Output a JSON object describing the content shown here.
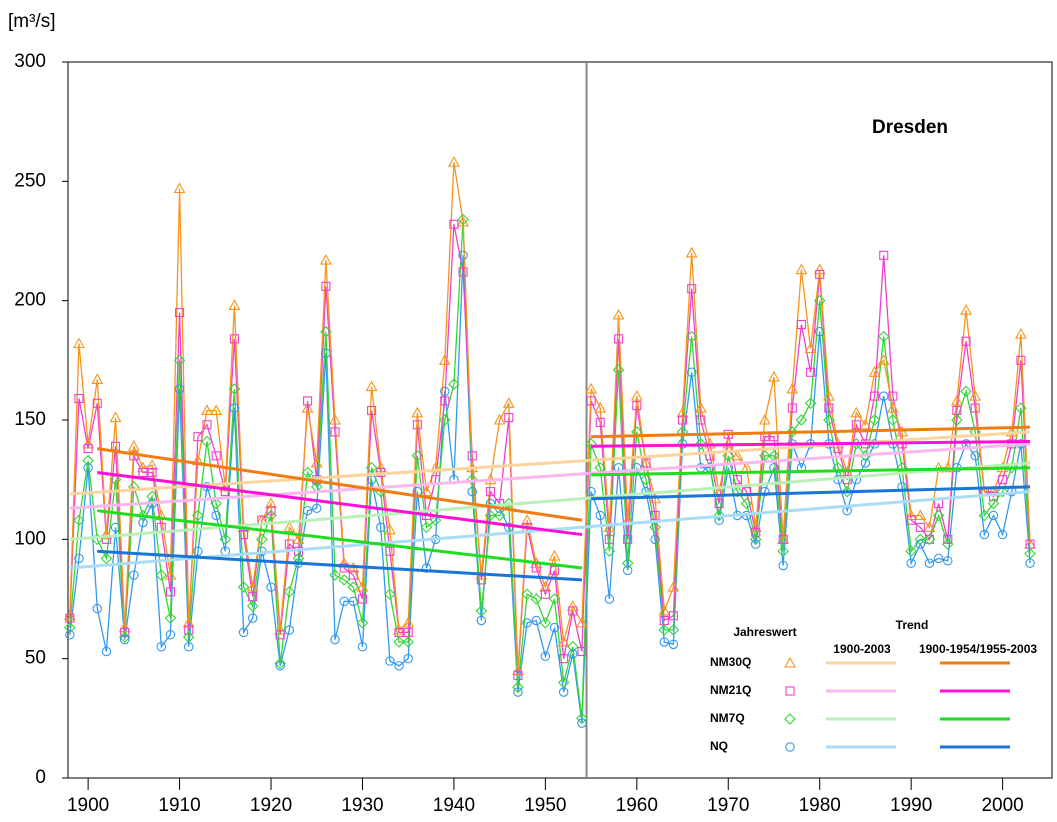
{
  "chart_data": {
    "type": "line",
    "y_label": "[m³/s]",
    "annotation": "Dresden",
    "xlim": [
      1897.8,
      2005.4
    ],
    "xticks": [
      1900,
      1910,
      1920,
      1930,
      1940,
      1950,
      1960,
      1970,
      1980,
      1990,
      2000
    ],
    "ylim": [
      0,
      300
    ],
    "yticks": [
      0,
      50,
      100,
      150,
      200,
      250,
      300
    ],
    "divider_x": 1954.5,
    "divider_color": "#888888",
    "legend": {
      "values_title": "Jahreswert",
      "trend_title": "Trend",
      "periods": [
        "1900-2003",
        "1900-1954/1955-2003"
      ]
    },
    "x": [
      1898,
      1899,
      1900,
      1901,
      1902,
      1903,
      1904,
      1905,
      1906,
      1907,
      1908,
      1909,
      1910,
      1911,
      1912,
      1913,
      1914,
      1915,
      1916,
      1917,
      1918,
      1919,
      1920,
      1921,
      1922,
      1923,
      1924,
      1925,
      1926,
      1927,
      1928,
      1929,
      1930,
      1931,
      1932,
      1933,
      1934,
      1935,
      1936,
      1937,
      1938,
      1939,
      1940,
      1941,
      1942,
      1943,
      1944,
      1945,
      1946,
      1947,
      1948,
      1949,
      1950,
      1951,
      1952,
      1953,
      1954,
      1955,
      1956,
      1957,
      1958,
      1959,
      1960,
      1961,
      1962,
      1963,
      1964,
      1965,
      1966,
      1967,
      1968,
      1969,
      1970,
      1971,
      1972,
      1973,
      1974,
      1975,
      1976,
      1977,
      1978,
      1979,
      1980,
      1981,
      1982,
      1983,
      1984,
      1985,
      1986,
      1987,
      1988,
      1989,
      1990,
      1991,
      1992,
      1993,
      1994,
      1995,
      1996,
      1997,
      1998,
      1999,
      2000,
      2001,
      2002,
      2003
    ],
    "series": [
      {
        "name": "NM30Q",
        "marker": "triangle",
        "color": "#f7941d",
        "trend_light_color": "#fbd39c",
        "trend_color": "#f07c12",
        "values": [
          68,
          182,
          140,
          167,
          102,
          151,
          63,
          139,
          130,
          131,
          110,
          85,
          247,
          65,
          133,
          154,
          154,
          122,
          198,
          105,
          80,
          108,
          115,
          62,
          105,
          100,
          155,
          132,
          217,
          150,
          90,
          88,
          80,
          164,
          130,
          104,
          62,
          65,
          153,
          120,
          130,
          175,
          258,
          233,
          130,
          85,
          125,
          150,
          157,
          45,
          108,
          90,
          80,
          93,
          57,
          72,
          65,
          163,
          155,
          105,
          194,
          108,
          160,
          132,
          117,
          70,
          80,
          153,
          220,
          155,
          140,
          120,
          140,
          135,
          130,
          105,
          150,
          168,
          100,
          163,
          213,
          180,
          213,
          160,
          140,
          128,
          153,
          148,
          170,
          175,
          155,
          145,
          110,
          110,
          105,
          130,
          130,
          158,
          196,
          160,
          120,
          120,
          130,
          145,
          186,
          98
        ],
        "trend_all": {
          "x": [
            1898,
            2003
          ],
          "values": [
            119,
            145
          ]
        },
        "trend_split": [
          {
            "x": [
              1901,
              1954
            ],
            "values": [
              138,
              108
            ]
          },
          {
            "x": [
              1955,
              2003
            ],
            "values": [
              143,
              147
            ]
          }
        ]
      },
      {
        "name": "NM21Q",
        "marker": "square",
        "color": "#f040d0",
        "trend_light_color": "#fbb8ef",
        "trend_color": "#ff10d8",
        "values": [
          67,
          159,
          138,
          157,
          100,
          139,
          61,
          135,
          128,
          128,
          105,
          78,
          195,
          62,
          143,
          148,
          135,
          120,
          184,
          102,
          76,
          108,
          112,
          60,
          98,
          95,
          158,
          125,
          206,
          145,
          88,
          85,
          75,
          154,
          128,
          95,
          61,
          61,
          148,
          110,
          125,
          158,
          232,
          212,
          135,
          83,
          120,
          115,
          151,
          43,
          105,
          88,
          77,
          87,
          50,
          70,
          53,
          158,
          149,
          100,
          184,
          100,
          156,
          132,
          110,
          66,
          68,
          150,
          205,
          150,
          135,
          115,
          144,
          125,
          120,
          103,
          143,
          143,
          100,
          155,
          190,
          170,
          211,
          155,
          138,
          125,
          148,
          140,
          160,
          219,
          160,
          140,
          108,
          105,
          100,
          115,
          100,
          154,
          183,
          155,
          120,
          118,
          125,
          140,
          175,
          98
        ],
        "trend_all": {
          "x": [
            1898,
            2003
          ],
          "values": [
            113,
            140
          ]
        },
        "trend_split": [
          {
            "x": [
              1901,
              1954
            ],
            "values": [
              128,
              102
            ]
          },
          {
            "x": [
              1955,
              2003
            ],
            "values": [
              139,
              141
            ]
          }
        ]
      },
      {
        "name": "NM7Q",
        "marker": "diamond",
        "color": "#33d633",
        "trend_light_color": "#b8f0b8",
        "trend_color": "#1fdd1f",
        "values": [
          63,
          108,
          133,
          100,
          92,
          125,
          59,
          122,
          110,
          118,
          85,
          67,
          175,
          59,
          110,
          141,
          115,
          100,
          163,
          80,
          72,
          100,
          110,
          48,
          78,
          92,
          128,
          122,
          187,
          85,
          83,
          80,
          65,
          130,
          120,
          77,
          57,
          57,
          135,
          105,
          108,
          150,
          165,
          234,
          125,
          70,
          110,
          110,
          115,
          38,
          77,
          75,
          65,
          75,
          40,
          55,
          25,
          140,
          130,
          95,
          171,
          90,
          145,
          125,
          105,
          62,
          62,
          145,
          185,
          140,
          130,
          110,
          135,
          120,
          115,
          100,
          135,
          135,
          95,
          145,
          150,
          157,
          200,
          150,
          130,
          120,
          140,
          135,
          150,
          185,
          150,
          130,
          95,
          100,
          100,
          110,
          98,
          150,
          162,
          145,
          110,
          115,
          120,
          130,
          155,
          94
        ],
        "trend_all": {
          "x": [
            1898,
            2003
          ],
          "values": [
            100,
            132
          ]
        },
        "trend_split": [
          {
            "x": [
              1901,
              1954
            ],
            "values": [
              112,
              88
            ]
          },
          {
            "x": [
              1955,
              2003
            ],
            "values": [
              127,
              130
            ]
          }
        ]
      },
      {
        "name": "NQ",
        "marker": "circle",
        "color": "#3399ee",
        "trend_light_color": "#aadcf6",
        "trend_color": "#1a75d9",
        "values": [
          60,
          92,
          130,
          71,
          53,
          105,
          58,
          85,
          107,
          115,
          55,
          60,
          163,
          55,
          95,
          122,
          110,
          95,
          155,
          61,
          67,
          95,
          80,
          47,
          62,
          90,
          112,
          113,
          178,
          58,
          74,
          74,
          55,
          125,
          105,
          49,
          47,
          50,
          120,
          88,
          100,
          162,
          125,
          219,
          120,
          66,
          115,
          113,
          105,
          36,
          65,
          66,
          51,
          63,
          36,
          52,
          23,
          120,
          110,
          75,
          130,
          87,
          130,
          120,
          100,
          57,
          56,
          140,
          170,
          130,
          130,
          108,
          130,
          110,
          110,
          98,
          120,
          130,
          89,
          140,
          130,
          140,
          187,
          140,
          125,
          112,
          125,
          132,
          140,
          160,
          140,
          122,
          90,
          98,
          90,
          92,
          91,
          130,
          140,
          135,
          102,
          110,
          102,
          120,
          140,
          90
        ],
        "trend_all": {
          "x": [
            1898,
            2003
          ],
          "values": [
            88,
            120
          ]
        },
        "trend_split": [
          {
            "x": [
              1901,
              1954
            ],
            "values": [
              95,
              83
            ]
          },
          {
            "x": [
              1955,
              2003
            ],
            "values": [
              117,
              122
            ]
          }
        ]
      }
    ]
  }
}
